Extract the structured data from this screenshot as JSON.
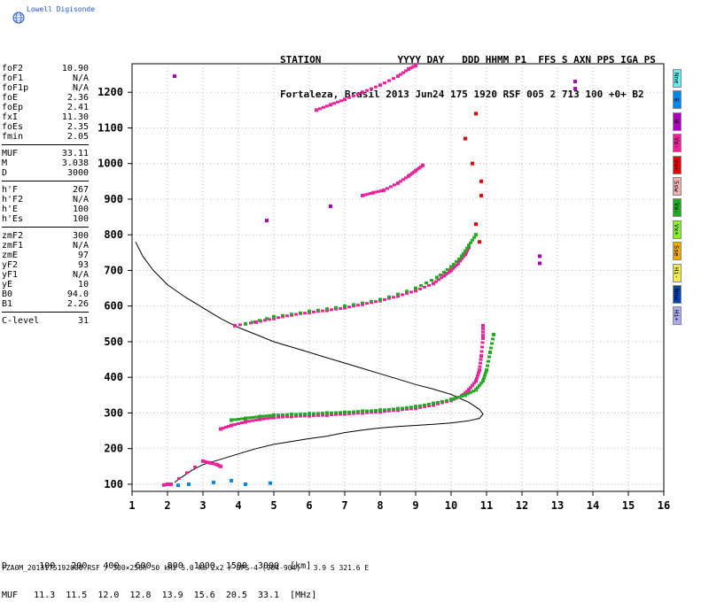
{
  "logo": {
    "text": "Lowell Digisonde",
    "icon": "globe-icon"
  },
  "header": {
    "line1": "STATION             YYYY DAY   DDD HHMM P1  FFS S AXN PPS IGA PS",
    "line2": "Fortaleza, Brasil 2013 Jun24 175 1920 RSF 005 2 713 100 +0+ B2"
  },
  "params": {
    "group1": [
      {
        "k": "foF2",
        "v": "10.90"
      },
      {
        "k": "foF1",
        "v": "N/A"
      },
      {
        "k": "foF1p",
        "v": "N/A"
      },
      {
        "k": "foE",
        "v": "2.36"
      },
      {
        "k": "foEp",
        "v": "2.41"
      },
      {
        "k": "fxI",
        "v": "11.30"
      },
      {
        "k": "foEs",
        "v": "2.35"
      },
      {
        "k": "fmin",
        "v": "2.05"
      }
    ],
    "group2": [
      {
        "k": "MUF",
        "v": "33.11"
      },
      {
        "k": "M",
        "v": "3.038"
      },
      {
        "k": "D",
        "v": "3000"
      }
    ],
    "group3": [
      {
        "k": "h'F",
        "v": "267"
      },
      {
        "k": "h'F2",
        "v": "N/A"
      },
      {
        "k": "h'E",
        "v": "100"
      },
      {
        "k": "h'Es",
        "v": "100"
      }
    ],
    "group4": [
      {
        "k": "zmF2",
        "v": "300"
      },
      {
        "k": "zmF1",
        "v": "N/A"
      },
      {
        "k": "zmE",
        "v": "97"
      },
      {
        "k": "yF2",
        "v": "93"
      },
      {
        "k": "yF1",
        "v": "N/A"
      },
      {
        "k": "yE",
        "v": "10"
      },
      {
        "k": "B0",
        "v": "94.0"
      },
      {
        "k": "B1",
        "v": "2.26"
      }
    ],
    "group5": [
      {
        "k": "C-level",
        "v": "31"
      }
    ]
  },
  "legend": [
    {
      "label": "Nne",
      "color": "#66eeee"
    },
    {
      "label": "E",
      "color": "#0088ee"
    },
    {
      "label": "W",
      "color": "#aa00bb"
    },
    {
      "label": "Vo-",
      "color": "#ee2299"
    },
    {
      "label": "Vo+",
      "color": "#ee0000"
    },
    {
      "label": "Ssw",
      "color": "#f0b0b0"
    },
    {
      "label": "Vx-",
      "color": "#22aa22"
    },
    {
      "label": "Vx+",
      "color": "#88ee33"
    },
    {
      "label": "Sse",
      "color": "#eeaa00"
    },
    {
      "label": "Hi-",
      "color": "#eeee44"
    },
    {
      "label": "Nnw",
      "color": "#0044aa"
    },
    {
      "label": "Hi+",
      "color": "#aaaaee"
    }
  ],
  "dtable": {
    "d_label": "D",
    "d_values": [
      "100",
      "200",
      "400",
      "600",
      "800",
      "1000",
      "1500",
      "3000"
    ],
    "d_unit": "[km]",
    "muf_label": "MUF",
    "muf_values": [
      "11.3",
      "11.5",
      "12.0",
      "12.8",
      "13.9",
      "15.6",
      "20.5",
      "33.1"
    ],
    "muf_unit": "[MHz]"
  },
  "footer": "FZA0M_2013175192000.RSF / 300×256h 50 kHz 5.0 km 2x2 / DPS-4 (904-904)   3.9 S 321.6 E",
  "chart_data": {
    "type": "scatter",
    "xlim": [
      1,
      16
    ],
    "ylim": [
      80,
      1280
    ],
    "xticks": [
      1,
      2,
      3,
      4,
      5,
      6,
      7,
      8,
      9,
      10,
      11,
      12,
      13,
      14,
      15,
      16
    ],
    "yticks": [
      100,
      200,
      300,
      400,
      500,
      600,
      700,
      800,
      900,
      1000,
      1100,
      1200
    ],
    "grid": true,
    "series": [
      {
        "mode": "F-trace O",
        "color": "#ee2299",
        "points": [
          [
            3.5,
            255
          ],
          [
            3.8,
            265
          ],
          [
            4.2,
            275
          ],
          [
            4.6,
            282
          ],
          [
            5.0,
            287
          ],
          [
            5.5,
            290
          ],
          [
            6.0,
            292
          ],
          [
            6.5,
            294
          ],
          [
            7.0,
            297
          ],
          [
            7.5,
            300
          ],
          [
            8.0,
            303
          ],
          [
            8.5,
            308
          ],
          [
            9.0,
            313
          ],
          [
            9.5,
            322
          ],
          [
            10.0,
            335
          ],
          [
            10.3,
            348
          ],
          [
            10.5,
            365
          ],
          [
            10.7,
            390
          ],
          [
            10.8,
            420
          ],
          [
            10.85,
            460
          ],
          [
            10.9,
            510
          ],
          [
            10.9,
            545
          ]
        ]
      },
      {
        "mode": "F-trace X",
        "color": "#22aa22",
        "points": [
          [
            3.8,
            280
          ],
          [
            4.2,
            285
          ],
          [
            4.6,
            290
          ],
          [
            5.0,
            294
          ],
          [
            5.5,
            296
          ],
          [
            6.0,
            298
          ],
          [
            6.5,
            300
          ],
          [
            7.0,
            302
          ],
          [
            7.5,
            305
          ],
          [
            8.0,
            308
          ],
          [
            8.5,
            312
          ],
          [
            9.0,
            318
          ],
          [
            9.5,
            327
          ],
          [
            10.0,
            338
          ],
          [
            10.4,
            350
          ],
          [
            10.7,
            365
          ],
          [
            10.9,
            390
          ],
          [
            11.0,
            420
          ],
          [
            11.1,
            470
          ],
          [
            11.2,
            520
          ]
        ]
      },
      {
        "mode": "2F O",
        "color": "#ee2299",
        "points": [
          [
            3.9,
            545
          ],
          [
            4.5,
            555
          ],
          [
            5.0,
            565
          ],
          [
            5.5,
            575
          ],
          [
            6.0,
            582
          ],
          [
            6.5,
            588
          ],
          [
            7.0,
            595
          ],
          [
            7.5,
            605
          ],
          [
            8.0,
            615
          ],
          [
            8.5,
            628
          ],
          [
            9.0,
            643
          ],
          [
            9.5,
            663
          ],
          [
            9.8,
            685
          ],
          [
            10.0,
            700
          ],
          [
            10.2,
            720
          ],
          [
            10.4,
            745
          ],
          [
            10.5,
            765
          ]
        ]
      },
      {
        "mode": "2F X",
        "color": "#22aa22",
        "points": [
          [
            4.2,
            550
          ],
          [
            5.0,
            570
          ],
          [
            6.0,
            585
          ],
          [
            7.0,
            600
          ],
          [
            8.0,
            618
          ],
          [
            9.0,
            650
          ],
          [
            9.6,
            680
          ],
          [
            10.0,
            710
          ],
          [
            10.3,
            740
          ],
          [
            10.5,
            770
          ],
          [
            10.7,
            800
          ]
        ]
      },
      {
        "mode": "3F O",
        "color": "#ee2299",
        "points": [
          [
            7.5,
            910
          ],
          [
            7.8,
            918
          ],
          [
            8.1,
            925
          ],
          [
            8.5,
            945
          ],
          [
            8.8,
            965
          ],
          [
            9.0,
            980
          ],
          [
            9.2,
            995
          ]
        ]
      },
      {
        "mode": "3F high",
        "color": "#ee2299",
        "points": [
          [
            6.2,
            1150
          ],
          [
            6.6,
            1165
          ],
          [
            7.0,
            1180
          ],
          [
            7.5,
            1200
          ],
          [
            8.0,
            1220
          ],
          [
            8.5,
            1245
          ],
          [
            8.8,
            1265
          ],
          [
            9.0,
            1275
          ]
        ]
      },
      {
        "mode": "E/Es",
        "color": "#ee2299",
        "points": [
          [
            1.9,
            98
          ],
          [
            2.0,
            100
          ],
          [
            2.1,
            100
          ],
          [
            3.0,
            165
          ],
          [
            3.2,
            160
          ],
          [
            3.4,
            155
          ],
          [
            3.5,
            150
          ]
        ]
      },
      {
        "mode": "Es low",
        "color": "#0088ee",
        "points": [
          [
            2.3,
            97
          ],
          [
            2.6,
            100
          ],
          [
            3.3,
            105
          ],
          [
            3.8,
            110
          ],
          [
            4.2,
            100
          ],
          [
            4.9,
            103
          ]
        ]
      },
      {
        "mode": "misc",
        "color": "#ee0000",
        "points": [
          [
            10.85,
            910
          ],
          [
            10.85,
            950
          ],
          [
            10.6,
            1000
          ],
          [
            10.4,
            1070
          ],
          [
            10.7,
            1140
          ],
          [
            10.7,
            830
          ],
          [
            10.8,
            780
          ]
        ]
      },
      {
        "mode": "sporadic",
        "color": "#aa00bb",
        "points": [
          [
            4.8,
            840
          ],
          [
            6.6,
            880
          ],
          [
            12.5,
            720
          ],
          [
            12.5,
            740
          ],
          [
            13.5,
            1210
          ],
          [
            13.5,
            1230
          ],
          [
            2.2,
            1245
          ]
        ]
      }
    ],
    "profile_curve": [
      [
        1.1,
        780
      ],
      [
        1.3,
        740
      ],
      [
        1.6,
        700
      ],
      [
        2.0,
        660
      ],
      [
        2.5,
        625
      ],
      [
        3.0,
        595
      ],
      [
        3.5,
        565
      ],
      [
        4.0,
        540
      ],
      [
        4.5,
        520
      ],
      [
        5.0,
        500
      ],
      [
        5.5,
        485
      ],
      [
        6.0,
        470
      ],
      [
        6.5,
        455
      ],
      [
        7.0,
        440
      ],
      [
        7.5,
        425
      ],
      [
        8.0,
        410
      ],
      [
        8.5,
        395
      ],
      [
        9.0,
        380
      ],
      [
        9.5,
        367
      ],
      [
        10.0,
        352
      ],
      [
        10.5,
        330
      ],
      [
        10.8,
        310
      ],
      [
        10.9,
        297
      ],
      [
        10.8,
        285
      ],
      [
        10.5,
        278
      ],
      [
        10.0,
        272
      ],
      [
        9.5,
        268
      ],
      [
        9.0,
        265
      ],
      [
        8.5,
        262
      ],
      [
        8.0,
        258
      ],
      [
        7.5,
        252
      ],
      [
        7.0,
        245
      ],
      [
        6.5,
        235
      ],
      [
        6.0,
        228
      ],
      [
        5.5,
        220
      ],
      [
        5.0,
        212
      ],
      [
        4.5,
        200
      ],
      [
        4.0,
        185
      ],
      [
        3.5,
        170
      ],
      [
        3.0,
        155
      ],
      [
        2.7,
        140
      ],
      [
        2.4,
        120
      ],
      [
        2.2,
        105
      ]
    ]
  }
}
